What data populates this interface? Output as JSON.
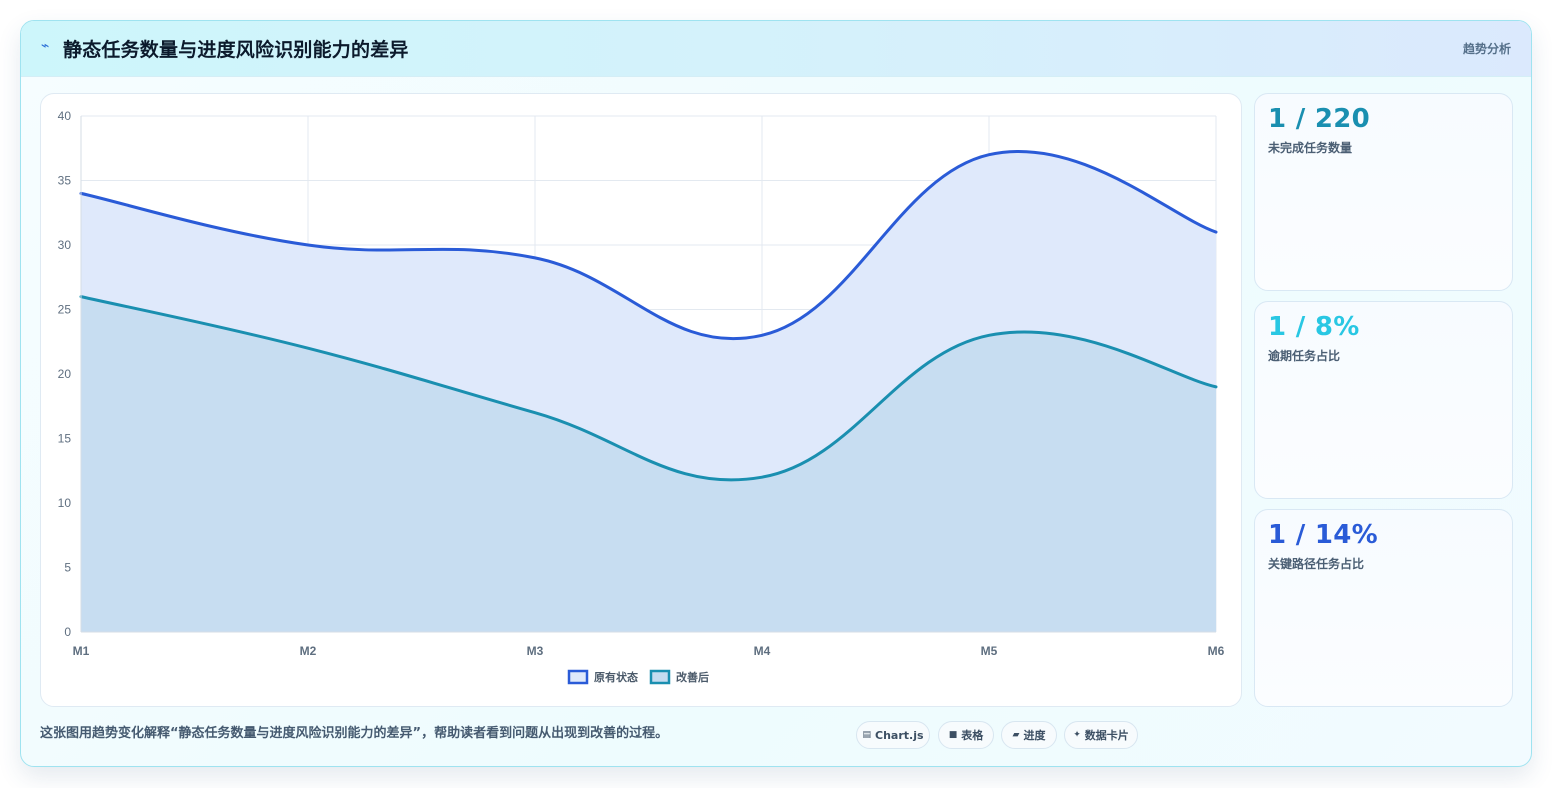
{
  "header": {
    "icon": "sparkline-icon",
    "title": "静态任务数量与进度风险识别能力的差异",
    "tag": "趋势分析"
  },
  "stats": [
    {
      "value": "1 / 220",
      "label": "未完成任务数量",
      "color": "#1a8fb0"
    },
    {
      "value": "1 / 8%",
      "label": "逾期任务占比",
      "color": "#29c7e3"
    },
    {
      "value": "1 / 14%",
      "label": "关键路径任务占比",
      "color": "#2a5bd7"
    }
  ],
  "caption": "这张图用趋势变化解释“静态任务数量与进度风险识别能力的差异”，帮助读者看到问题从出现到改善的过程。",
  "pills": [
    {
      "icon": "▤",
      "label": "Chart.js"
    },
    {
      "icon": "■",
      "label": "表格"
    },
    {
      "icon": "▰",
      "label": "进度"
    },
    {
      "icon": "✦",
      "label": "数据卡片"
    }
  ],
  "chart_data": {
    "type": "area",
    "categories": [
      "M1",
      "M2",
      "M3",
      "M4",
      "M5",
      "M6"
    ],
    "series": [
      {
        "name": "原有状态",
        "values": [
          34,
          30,
          29,
          23,
          37,
          31
        ],
        "color": "#2a5bd7",
        "fill": "#dfe9fb"
      },
      {
        "name": "改善后",
        "values": [
          26,
          22,
          17,
          12,
          23,
          19
        ],
        "color": "#1a8fb0",
        "fill": "#c5dcf0"
      }
    ],
    "ylim": [
      0,
      40
    ],
    "yticks": [
      "0",
      "5",
      "10",
      "15",
      "20",
      "25",
      "30",
      "35",
      "40"
    ],
    "grid": true,
    "legend": "bottom"
  }
}
